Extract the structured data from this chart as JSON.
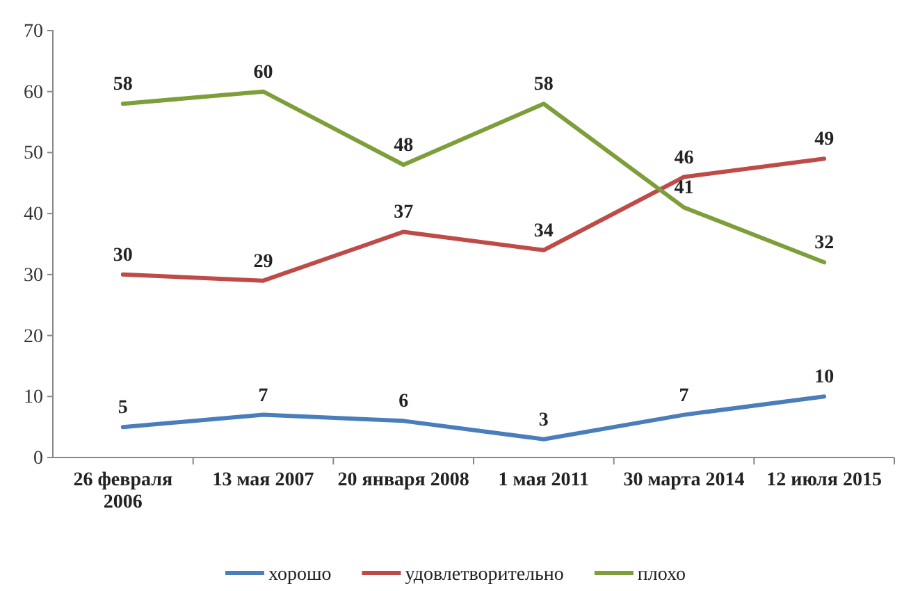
{
  "chart_data": {
    "type": "line",
    "categories": [
      "26 февраля 2006",
      "13 мая 2007",
      "20 января 2008",
      "1 мая 2011",
      "30 марта 2014",
      "12 июля 2015"
    ],
    "series": [
      {
        "name": "хорошо",
        "color": "#4a7ebb",
        "values": [
          5,
          7,
          6,
          3,
          7,
          10
        ]
      },
      {
        "name": "удовлетворительно",
        "color": "#be4b48",
        "values": [
          30,
          29,
          37,
          34,
          46,
          49
        ]
      },
      {
        "name": "плохо",
        "color": "#7e9e3a",
        "values": [
          58,
          60,
          48,
          58,
          41,
          32
        ]
      }
    ],
    "ylim": [
      0,
      70
    ],
    "yticks": [
      0,
      10,
      20,
      30,
      40,
      50,
      60,
      70
    ],
    "data_labels": true,
    "legend": "bottom",
    "grid": false,
    "marker": "none"
  }
}
